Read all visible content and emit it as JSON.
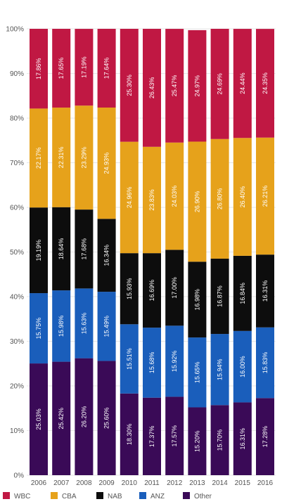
{
  "chart_data": {
    "type": "bar",
    "stacked": true,
    "percent": true,
    "categories": [
      "2006",
      "2007",
      "2008",
      "2009",
      "2010",
      "2011",
      "2012",
      "2013",
      "2014",
      "2015",
      "2016"
    ],
    "series": [
      {
        "name": "Other",
        "color": "#3a0a57",
        "values": [
          25.03,
          25.42,
          26.2,
          25.6,
          18.3,
          17.37,
          17.57,
          15.2,
          15.7,
          16.31,
          17.28
        ],
        "labels": [
          "25.03%",
          "25.42%",
          "26.20%",
          "25.60%",
          "18.30%",
          "17.37%",
          "17.57%",
          "15.20%",
          "15.70%",
          "16.31%",
          "17.28%"
        ]
      },
      {
        "name": "ANZ",
        "color": "#1a5ebb",
        "values": [
          15.75,
          15.98,
          15.63,
          15.49,
          15.51,
          15.68,
          15.92,
          15.65,
          15.94,
          16.0,
          15.83
        ],
        "labels": [
          "15.75%",
          "15.98%",
          "15.63%",
          "15.49%",
          "15.51%",
          "15.68%",
          "15.92%",
          "15.65%",
          "15.94%",
          "16.00%",
          "15.83%"
        ]
      },
      {
        "name": "NAB",
        "color": "#0d0d0d",
        "values": [
          19.19,
          18.64,
          17.68,
          16.34,
          15.93,
          16.69,
          17.0,
          16.98,
          16.87,
          16.84,
          16.31
        ],
        "labels": [
          "19.19%",
          "18.64%",
          "17.68%",
          "16.34%",
          "15.93%",
          "16.69%",
          "17.00%",
          "16.98%",
          "16.87%",
          "16.84%",
          "16.31%"
        ]
      },
      {
        "name": "CBA",
        "color": "#e6a21b",
        "values": [
          22.17,
          22.31,
          23.29,
          24.93,
          24.96,
          23.83,
          24.03,
          26.9,
          26.8,
          26.4,
          26.21
        ],
        "labels": [
          "22.17%",
          "22.31%",
          "23.29%",
          "24.93%",
          "24.96%",
          "23.83%",
          "24.03%",
          "26.90%",
          "26.80%",
          "26.40%",
          "26.21%"
        ]
      },
      {
        "name": "WBC",
        "color": "#c01843",
        "values": [
          17.86,
          17.65,
          17.19,
          17.64,
          25.3,
          26.43,
          25.47,
          24.97,
          24.69,
          24.44,
          24.35
        ],
        "labels": [
          "17.86%",
          "17.65%",
          "17.19%",
          "17.64%",
          "25.30%",
          "26.43%",
          "25.47%",
          "24.97%",
          "24.69%",
          "24.44%",
          "24.35%"
        ]
      }
    ],
    "legend": {
      "position": "bottom",
      "order": [
        "WBC",
        "CBA",
        "NAB",
        "ANZ",
        "Other"
      ]
    },
    "y_ticks": [
      "0%",
      "10%",
      "20%",
      "30%",
      "40%",
      "50%",
      "60%",
      "70%",
      "80%",
      "90%",
      "100%"
    ],
    "ylim": [
      0,
      100
    ],
    "grid": true,
    "title": "",
    "xlabel": "",
    "ylabel": ""
  }
}
